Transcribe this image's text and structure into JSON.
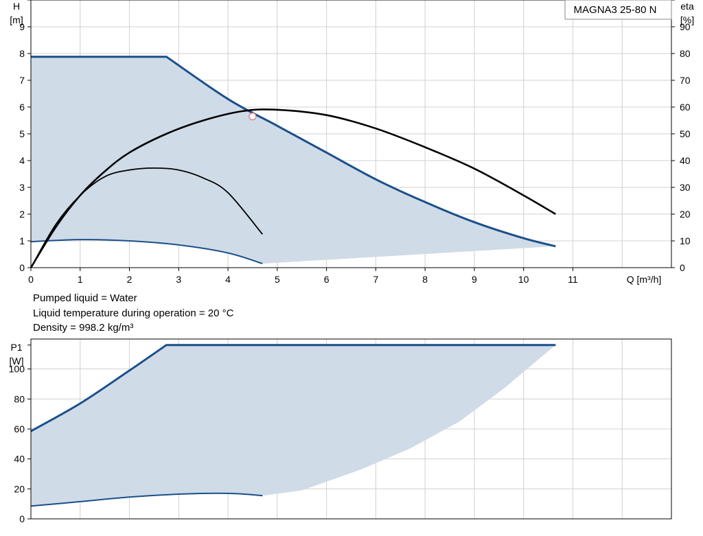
{
  "product_label": "MAGNA3 25-80 N",
  "info": {
    "line1": "Pumped liquid = Water",
    "line2": "Liquid temperature during operation = 20 °C",
    "line3": "Density = 998.2 kg/m³"
  },
  "colors": {
    "pump_curve": "#1a4f8a",
    "efficiency": "#000000",
    "area_fill": "#cfdbe7",
    "grid": "#d0d0d0",
    "duty_point": "#e07070"
  },
  "chart_data": [
    {
      "type": "line",
      "ylabel_top": "H",
      "ylabel_unit": "[m]",
      "y2label_top": "eta",
      "y2label_unit": "[%]",
      "xlabel": "Q [m³/h]",
      "xlim": [
        0,
        13
      ],
      "ylim": [
        0,
        10
      ],
      "y2lim": [
        0,
        100
      ],
      "xticks": [
        "0",
        "1",
        "2",
        "3",
        "4",
        "5",
        "6",
        "7",
        "8",
        "9",
        "10",
        "11"
      ],
      "yticks": [
        "0",
        "1",
        "2",
        "3",
        "4",
        "5",
        "6",
        "7",
        "8",
        "9"
      ],
      "y2ticks": [
        "0",
        "10",
        "20",
        "30",
        "40",
        "50",
        "60",
        "70",
        "80",
        "90"
      ],
      "grid": true,
      "series": [
        {
          "role": "max-head-curve",
          "axis": "H",
          "points": [
            [
              0,
              7.88
            ],
            [
              2.75,
              7.88
            ],
            [
              4,
              6.3
            ],
            [
              5,
              5.3
            ],
            [
              6,
              4.3
            ],
            [
              7,
              3.3
            ],
            [
              8,
              2.45
            ],
            [
              9,
              1.7
            ],
            [
              10,
              1.1
            ],
            [
              10.65,
              0.8
            ]
          ]
        },
        {
          "role": "min-head-curve",
          "axis": "H",
          "points": [
            [
              0,
              0.97
            ],
            [
              1,
              1.05
            ],
            [
              2,
              1.0
            ],
            [
              3,
              0.85
            ],
            [
              4,
              0.55
            ],
            [
              4.7,
              0.15
            ]
          ]
        },
        {
          "role": "max-efficiency",
          "axis": "eta",
          "points": [
            [
              0,
              0
            ],
            [
              0.5,
              15
            ],
            [
              1,
              27
            ],
            [
              1.5,
              36
            ],
            [
              2,
              43
            ],
            [
              2.75,
              50
            ],
            [
              3.5,
              55
            ],
            [
              4.3,
              58.5
            ],
            [
              5,
              59
            ],
            [
              6,
              57
            ],
            [
              7,
              52
            ],
            [
              8,
              45
            ],
            [
              9,
              37
            ],
            [
              10,
              27
            ],
            [
              10.65,
              20
            ]
          ]
        },
        {
          "role": "min-efficiency",
          "axis": "eta",
          "points": [
            [
              0,
              0
            ],
            [
              0.5,
              16
            ],
            [
              1,
              27
            ],
            [
              1.5,
              34
            ],
            [
              2,
              36.5
            ],
            [
              2.5,
              37.2
            ],
            [
              3,
              36.5
            ],
            [
              3.5,
              33.5
            ],
            [
              4,
              28
            ],
            [
              4.7,
              12.5
            ]
          ]
        }
      ],
      "area_lower_boundary": [
        [
          0,
          0.97
        ],
        [
          1,
          1.05
        ],
        [
          2,
          1.0
        ],
        [
          3,
          0.85
        ],
        [
          4,
          0.55
        ],
        [
          4.7,
          0.15
        ],
        [
          10.65,
          0.8
        ]
      ],
      "duty_point": {
        "x": 4.5,
        "y": 5.65
      }
    },
    {
      "type": "line",
      "ylabel_top": "P1",
      "ylabel_unit": "[W]",
      "xlim": [
        0,
        13
      ],
      "ylim": [
        0,
        120
      ],
      "yticks": [
        "0",
        "20",
        "40",
        "60",
        "80",
        "100"
      ],
      "grid": true,
      "series": [
        {
          "role": "max-power",
          "axis": "P1",
          "points": [
            [
              0,
              58.5
            ],
            [
              1,
              77
            ],
            [
              2,
              99
            ],
            [
              2.75,
              116
            ],
            [
              10.65,
              116
            ]
          ]
        },
        {
          "role": "min-power",
          "axis": "P1",
          "points": [
            [
              0,
              8.5
            ],
            [
              1,
              11.5
            ],
            [
              2,
              14.5
            ],
            [
              3,
              16.5
            ],
            [
              4,
              17
            ],
            [
              4.7,
              15.5
            ]
          ]
        }
      ],
      "area_lower_boundary": [
        [
          0,
          8.5
        ],
        [
          1,
          11.5
        ],
        [
          2,
          14.5
        ],
        [
          3,
          16.5
        ],
        [
          4,
          17
        ],
        [
          4.7,
          15.5
        ],
        [
          5.5,
          19
        ],
        [
          6.7,
          33
        ],
        [
          7.7,
          47
        ],
        [
          8.7,
          65
        ],
        [
          9.6,
          87
        ],
        [
          10.65,
          116
        ]
      ]
    }
  ]
}
